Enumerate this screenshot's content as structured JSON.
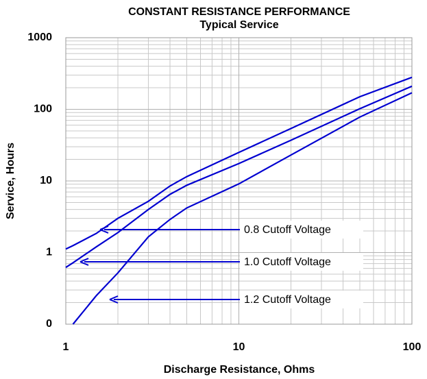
{
  "chart_data": {
    "type": "line",
    "title": "CONSTANT RESISTANCE PERFORMANCE",
    "subtitle": "Typical Service",
    "x_label": "Discharge Resistance, Ohms",
    "y_label": "Service, Hours",
    "x": [
      1,
      1.1,
      1.5,
      2,
      3,
      4,
      5,
      10,
      20,
      50,
      100
    ],
    "series": [
      {
        "name": "0.8 Cutoff Voltage",
        "color": "#0000d0",
        "values": [
          1.12,
          1.25,
          1.85,
          3,
          5.2,
          8.5,
          11.5,
          25,
          54,
          150,
          280
        ]
      },
      {
        "name": "1.0 Cutoff Voltage",
        "color": "#0000d0",
        "values": [
          0.62,
          0.72,
          1.2,
          1.9,
          4,
          6.5,
          8.7,
          17.5,
          37,
          102,
          210
        ]
      },
      {
        "name": "1.2 Cutoff Voltage",
        "color": "#0000d0",
        "values": [
          null,
          0.1,
          0.25,
          0.52,
          1.66,
          2.9,
          4.2,
          9.1,
          23,
          78,
          170
        ]
      }
    ],
    "xlim": [
      1,
      100
    ],
    "xticks": [
      1,
      10,
      100
    ],
    "ylim": [
      0.1,
      1000
    ],
    "yticks": [
      {
        "value": 0.1,
        "label": "0"
      },
      1,
      10,
      100,
      1000
    ],
    "xscale": "log",
    "yscale": "log",
    "grid": true
  }
}
